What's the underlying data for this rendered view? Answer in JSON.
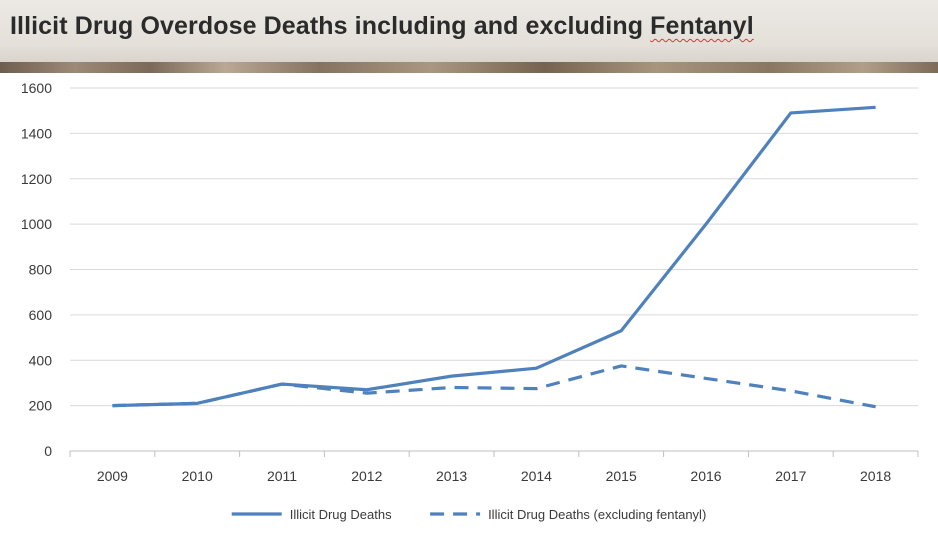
{
  "title": {
    "text_main": "Illicit Drug Overdose Deaths including and excluding ",
    "text_flagged": "Fentanyl"
  },
  "chart_data": {
    "type": "line",
    "title": "Illicit Drug Overdose Deaths including and excluding Fentanyl",
    "xlabel": "",
    "ylabel": "",
    "categories": [
      "2009",
      "2010",
      "2011",
      "2012",
      "2013",
      "2014",
      "2015",
      "2016",
      "2017",
      "2018"
    ],
    "ylim": [
      0,
      1600
    ],
    "yticks": [
      0,
      200,
      400,
      600,
      800,
      1000,
      1200,
      1400,
      1600
    ],
    "grid": true,
    "legend_position": "bottom",
    "series": [
      {
        "name": "Illicit Drug Deaths",
        "style": "solid",
        "color": "#4f81bd",
        "values": [
          200,
          210,
          295,
          270,
          330,
          365,
          530,
          1000,
          1490,
          1515
        ]
      },
      {
        "name": "Illicit Drug Deaths (excluding fentanyl)",
        "style": "dashed",
        "color": "#4f81bd",
        "values": [
          200,
          210,
          295,
          255,
          280,
          275,
          375,
          320,
          265,
          195
        ]
      }
    ]
  }
}
